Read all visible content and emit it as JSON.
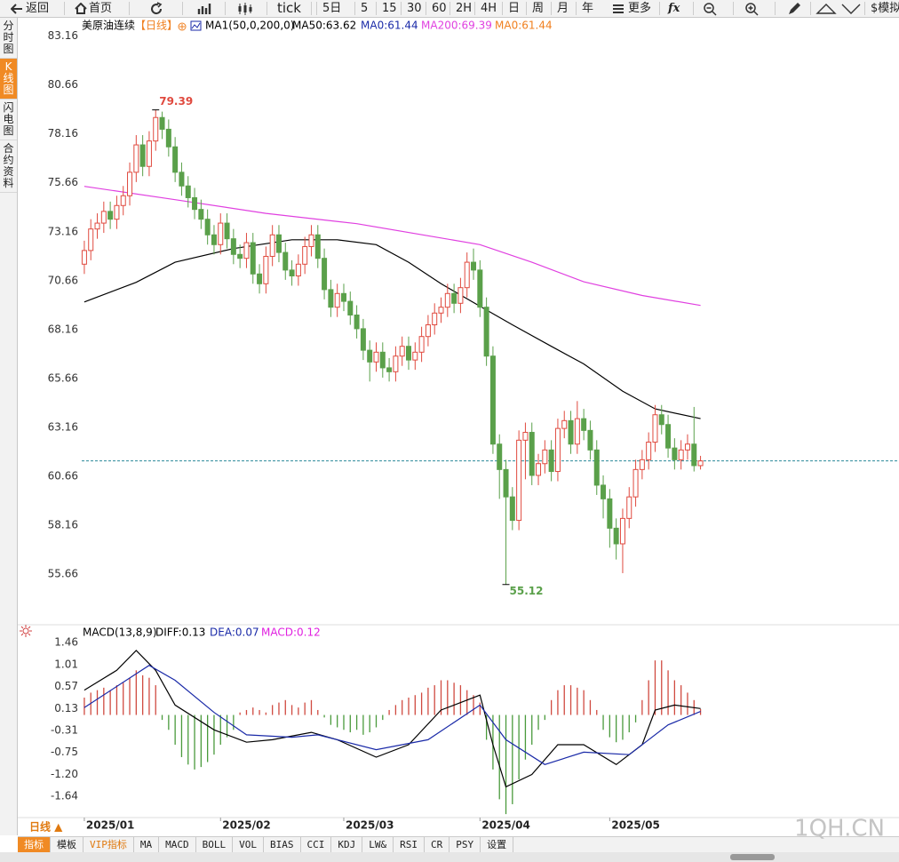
{
  "toolbar": {
    "back": "返回",
    "home": "首页",
    "tick": "tick",
    "periods": [
      "5日",
      "5",
      "15",
      "30",
      "60",
      "2H",
      "4H",
      "日",
      "周",
      "月",
      "年"
    ],
    "more": "更多",
    "fx": "fx",
    "simulate": "$模拟"
  },
  "sidebar": [
    "分时图",
    "K线图",
    "闪电图",
    "合约资料"
  ],
  "bottom": {
    "period": "日线 ▲",
    "tabs": [
      "指标",
      "模板",
      "VIP指标",
      "MA",
      "MACD",
      "BOLL",
      "VOL",
      "BIAS",
      "CCI",
      "KDJ",
      "LW&",
      "RSI",
      "CR",
      "PSY",
      "设置"
    ]
  },
  "watermark": "1QH.CN",
  "chart_data": [
    {
      "type": "candlestick",
      "title": "美原油连续",
      "period": "【日线】",
      "legend": [
        {
          "text": "MA1(50,0,200,0)",
          "color": "#000000"
        },
        {
          "text": "MA50:63.62",
          "color": "#000000"
        },
        {
          "text": "MA0:61.44",
          "color": "#1a2aa8"
        },
        {
          "text": "MA200:69.39",
          "color": "#e040e0"
        },
        {
          "text": "MA0:61.44",
          "color": "#f08020"
        }
      ],
      "open": [
        71.5,
        72.2,
        73.3,
        73.6,
        74.2,
        73.8,
        74.5,
        75.0,
        76.2,
        77.6,
        76.5,
        77.8,
        79.0,
        78.4,
        77.5,
        76.2,
        75.5,
        74.9,
        74.3,
        73.8,
        73.0,
        72.5,
        73.6,
        72.8,
        72.0,
        71.8,
        72.6,
        71.0,
        70.5,
        71.9,
        73.0,
        72.1,
        71.2,
        70.9,
        71.5,
        72.4,
        73.0,
        71.8,
        70.2,
        69.3,
        70.0,
        69.6,
        68.9,
        68.2,
        67.1,
        66.5,
        67.0,
        66.2,
        66.0,
        66.8,
        67.3,
        66.6,
        67.0,
        67.8,
        68.4,
        69.0,
        69.3,
        70.0,
        69.5,
        70.3,
        71.6,
        71.2,
        69.3,
        66.8,
        62.3,
        61.0,
        59.6,
        58.4,
        62.5,
        62.9,
        60.7,
        61.3,
        62.0,
        60.9,
        63.1,
        63.5,
        62.3,
        63.6,
        63.0,
        62.0,
        60.2,
        59.5,
        58.0,
        57.2,
        58.5,
        59.6,
        61.0,
        61.5,
        62.4,
        63.8,
        63.3,
        62.1,
        61.5,
        62.0,
        62.3,
        61.2
      ],
      "high": [
        72.7,
        73.8,
        74.1,
        74.7,
        74.7,
        75.0,
        75.5,
        76.7,
        78.1,
        78.1,
        78.3,
        79.39,
        79.3,
        78.9,
        78.0,
        76.7,
        76.0,
        75.4,
        74.8,
        74.3,
        73.5,
        74.1,
        74.1,
        73.3,
        72.5,
        73.1,
        73.1,
        71.5,
        72.4,
        73.5,
        73.5,
        72.6,
        71.7,
        72.0,
        72.9,
        73.5,
        73.5,
        72.3,
        70.7,
        70.5,
        70.5,
        70.1,
        69.4,
        68.7,
        67.6,
        67.5,
        67.5,
        66.7,
        67.3,
        67.8,
        67.8,
        67.5,
        68.3,
        68.9,
        69.5,
        69.8,
        70.5,
        70.5,
        70.8,
        72.1,
        72.3,
        71.7,
        69.8,
        67.3,
        62.8,
        61.5,
        60.1,
        63.0,
        63.4,
        63.4,
        61.8,
        62.5,
        62.5,
        63.6,
        64.0,
        64.0,
        64.5,
        64.1,
        63.5,
        62.5,
        60.7,
        60.0,
        58.5,
        59.0,
        60.1,
        61.5,
        62.0,
        62.9,
        64.3,
        64.3,
        63.8,
        62.6,
        62.5,
        62.8,
        64.2,
        61.7
      ],
      "low": [
        71.0,
        71.7,
        72.8,
        73.1,
        73.3,
        73.3,
        74.0,
        74.5,
        75.7,
        76.0,
        76.0,
        77.3,
        77.9,
        77.0,
        75.7,
        75.0,
        74.4,
        73.8,
        73.3,
        72.5,
        72.0,
        72.0,
        72.3,
        71.5,
        71.3,
        71.3,
        70.5,
        70.0,
        70.0,
        71.4,
        71.6,
        70.7,
        70.4,
        70.4,
        71.0,
        71.9,
        71.3,
        69.7,
        68.8,
        68.8,
        69.1,
        68.4,
        67.7,
        66.6,
        65.5,
        66.0,
        65.7,
        65.5,
        65.5,
        66.3,
        66.1,
        66.1,
        66.5,
        67.3,
        67.9,
        68.5,
        68.8,
        69.0,
        69.0,
        69.8,
        70.7,
        68.8,
        66.3,
        61.8,
        59.5,
        55.12,
        57.9,
        57.9,
        60.5,
        60.2,
        60.2,
        60.8,
        60.4,
        60.4,
        62.6,
        61.8,
        61.8,
        62.5,
        61.5,
        59.7,
        58.5,
        57.0,
        56.4,
        55.7,
        58.0,
        59.1,
        60.5,
        61.0,
        61.9,
        62.8,
        61.6,
        61.0,
        61.0,
        61.5,
        60.9,
        61.0
      ],
      "close": [
        72.2,
        73.3,
        73.6,
        74.2,
        73.8,
        74.5,
        75.0,
        76.2,
        77.6,
        76.5,
        77.8,
        79.0,
        78.4,
        77.5,
        76.2,
        75.5,
        74.9,
        74.3,
        73.8,
        73.0,
        72.5,
        73.6,
        72.8,
        72.0,
        71.8,
        72.6,
        71.0,
        70.5,
        71.9,
        73.0,
        72.1,
        71.2,
        70.9,
        71.5,
        72.4,
        73.0,
        71.8,
        70.2,
        69.3,
        70.0,
        69.6,
        68.9,
        68.2,
        67.1,
        66.5,
        67.0,
        66.2,
        66.0,
        66.8,
        67.3,
        66.6,
        67.0,
        67.8,
        68.4,
        69.0,
        69.3,
        70.0,
        69.5,
        70.3,
        71.6,
        71.2,
        69.3,
        66.8,
        62.3,
        61.0,
        59.6,
        58.4,
        62.5,
        62.9,
        60.7,
        61.3,
        62.0,
        60.9,
        63.1,
        63.5,
        62.3,
        63.6,
        63.0,
        62.0,
        60.2,
        59.5,
        58.0,
        57.2,
        58.5,
        59.6,
        61.0,
        61.5,
        62.4,
        63.8,
        63.3,
        62.1,
        61.5,
        62.0,
        62.3,
        61.2,
        61.44
      ],
      "up_color": "#e04a3f",
      "down_color": "#5aa04a",
      "last_price_color": "#2a8a9a",
      "series": [
        {
          "color": "#000000",
          "x": [
            0,
            8,
            14,
            23,
            32,
            39,
            45,
            50,
            55,
            61,
            66,
            72,
            77,
            83,
            88,
            95
          ],
          "values": [
            69.57,
            70.57,
            71.6,
            72.3,
            72.75,
            72.75,
            72.5,
            71.6,
            70.5,
            69.35,
            68.4,
            67.3,
            66.4,
            65.0,
            64.1,
            63.6
          ]
        },
        {
          "color": "#e040e0",
          "x": [
            0,
            14,
            28,
            42,
            55,
            61,
            69,
            77,
            86,
            95
          ],
          "values": [
            75.48,
            74.8,
            74.1,
            73.57,
            72.84,
            72.5,
            71.6,
            70.6,
            69.9,
            69.39
          ]
        }
      ],
      "xlim": [
        -0.4,
        125.6
      ],
      "ylim": [
        53.2,
        84.1
      ],
      "yticks": [
        83.16,
        80.66,
        78.16,
        75.66,
        73.16,
        70.66,
        68.16,
        65.66,
        63.16,
        60.66,
        58.16,
        55.66
      ],
      "xticks": [
        {
          "value": 0,
          "label": "2025/01"
        },
        {
          "value": 21,
          "label": "2025/02"
        },
        {
          "value": 40,
          "label": "2025/03"
        },
        {
          "value": 61,
          "label": "2025/04"
        },
        {
          "value": 81,
          "label": "2025/05"
        }
      ]
    },
    {
      "type": "macd",
      "title": "MACD(13,8,9)",
      "legend": [
        {
          "text": "DIFF:0.13",
          "color": "#000000"
        },
        {
          "text": "DEA:0.07",
          "color": "#1a2aa8"
        },
        {
          "text": "MACD:0.12",
          "color": "#e020e0"
        }
      ],
      "histogram": [
        0.35,
        0.45,
        0.5,
        0.55,
        0.5,
        0.6,
        0.65,
        0.75,
        0.9,
        0.8,
        0.75,
        0.6,
        -0.1,
        -0.3,
        -0.6,
        -0.85,
        -1.0,
        -1.1,
        -1.05,
        -0.95,
        -0.8,
        -0.6,
        -0.45,
        -0.3,
        0.05,
        0.1,
        0.15,
        0.1,
        0.05,
        0.2,
        0.25,
        0.3,
        0.2,
        0.15,
        0.25,
        0.3,
        0.1,
        -0.05,
        -0.2,
        -0.25,
        -0.3,
        -0.35,
        -0.3,
        -0.4,
        -0.35,
        -0.25,
        -0.1,
        0.1,
        0.2,
        0.3,
        0.35,
        0.4,
        0.45,
        0.55,
        0.6,
        0.7,
        0.7,
        0.65,
        0.6,
        0.5,
        0.4,
        0.25,
        -0.5,
        -1.1,
        -1.7,
        -2.0,
        -1.8,
        -1.3,
        -0.9,
        -0.6,
        -0.3,
        -0.1,
        0.3,
        0.5,
        0.6,
        0.6,
        0.55,
        0.5,
        0.3,
        0.1,
        -0.3,
        -0.45,
        -0.55,
        -0.5,
        -0.35,
        -0.15,
        0.3,
        0.7,
        1.1,
        1.1,
        0.9,
        0.7,
        0.6,
        0.45,
        0.3,
        0.12
      ],
      "up_color": "#d04a40",
      "down_color": "#4a9a3c",
      "series": [
        {
          "color": "#000000",
          "x": [
            0,
            5,
            8,
            11,
            14,
            20,
            25,
            29,
            35,
            39,
            45,
            50,
            55,
            61,
            63,
            65,
            69,
            73,
            77,
            82,
            86,
            88,
            91,
            95
          ],
          "values": [
            0.5,
            0.9,
            1.3,
            0.9,
            0.2,
            -0.3,
            -0.55,
            -0.5,
            -0.35,
            -0.5,
            -0.85,
            -0.6,
            0.1,
            0.4,
            -0.6,
            -1.45,
            -1.2,
            -0.6,
            -0.6,
            -1.0,
            -0.6,
            0.1,
            0.2,
            0.13
          ]
        },
        {
          "color": "#1a2aa8",
          "x": [
            0,
            10,
            14,
            20,
            25,
            32,
            36,
            45,
            53,
            61,
            65,
            71,
            77,
            84,
            90,
            95
          ],
          "values": [
            0.15,
            1.0,
            0.7,
            0.05,
            -0.4,
            -0.45,
            -0.4,
            -0.7,
            -0.5,
            0.2,
            -0.5,
            -1.0,
            -0.75,
            -0.8,
            -0.2,
            0.07
          ]
        }
      ],
      "ylim": [
        -1.98,
        1.82
      ],
      "yticks": [
        1.46,
        1.01,
        0.57,
        0.13,
        -0.31,
        -0.75,
        {
          "value": -1.2,
          "label": "-1.20"
        },
        -1.64
      ]
    }
  ]
}
